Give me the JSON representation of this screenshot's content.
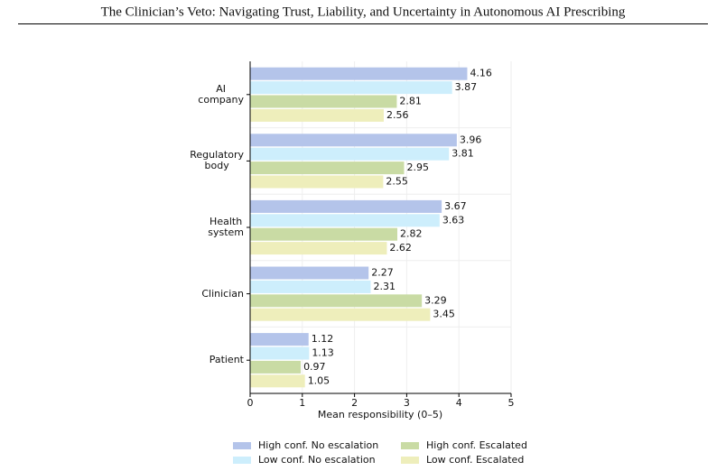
{
  "header": {
    "title": "The Clinician’s Veto: Navigating Trust, Liability, and Uncertainty in Autonomous AI Prescribing"
  },
  "chart_data": {
    "type": "bar",
    "orientation": "horizontal",
    "categories": [
      "AI company",
      "Regulatory body",
      "Health system",
      "Clinician",
      "Patient"
    ],
    "series": [
      {
        "name": "High conf. No escalation",
        "color": "#b4c4ea",
        "values": [
          4.16,
          3.96,
          3.67,
          2.27,
          1.12
        ]
      },
      {
        "name": "Low conf. No escalation",
        "color": "#cdeefc",
        "values": [
          3.87,
          3.81,
          3.63,
          2.31,
          1.13
        ]
      },
      {
        "name": "High conf. Escalated",
        "color": "#c9dba4",
        "values": [
          2.81,
          2.95,
          2.82,
          3.29,
          0.97
        ]
      },
      {
        "name": "Low conf. Escalated",
        "color": "#eeeebb",
        "values": [
          2.56,
          2.55,
          2.62,
          3.45,
          1.05
        ]
      }
    ],
    "x_label": "Mean responsibility (0–5)",
    "xlim": [
      0,
      5
    ],
    "xticks": [
      0,
      1,
      2,
      3,
      4,
      5
    ],
    "grid": true,
    "legend": "bottom"
  }
}
